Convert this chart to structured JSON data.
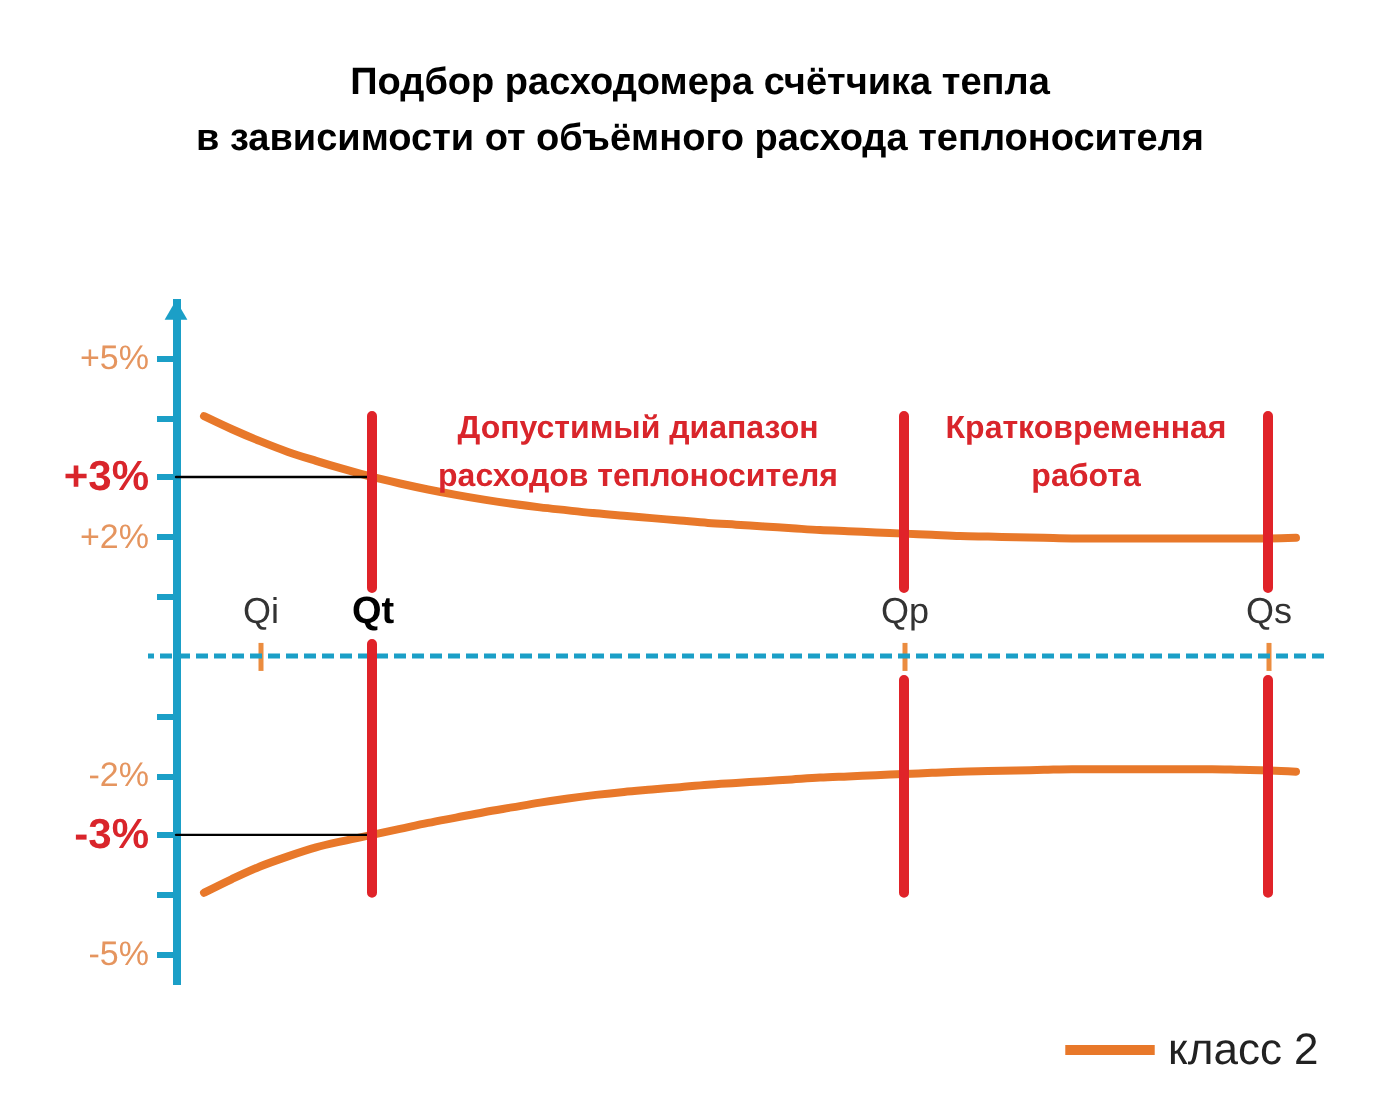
{
  "chart_data": {
    "type": "line",
    "title": "Подбор расходомера счётчика тепла\nв зависимости от объёмного расхода теплоносителя",
    "categories": [
      null,
      null,
      null,
      "Qi",
      null,
      null,
      null,
      "Qt",
      null,
      null,
      null,
      null,
      null,
      null,
      null,
      null,
      null,
      null,
      null,
      null,
      null,
      null,
      null,
      null,
      null,
      null,
      "Qp",
      null,
      null,
      null,
      null,
      null,
      null,
      null,
      null,
      null,
      null,
      null,
      null,
      "Qs",
      null
    ],
    "series": [
      {
        "name": "класс 2",
        "color": "#e8782a",
        "values": [
          null,
          4.02,
          3.8,
          3.6,
          3.42,
          3.27,
          3.13,
          3.0,
          2.89,
          2.79,
          2.7,
          2.62,
          2.55,
          2.49,
          2.44,
          2.39,
          2.35,
          2.31,
          2.27,
          2.23,
          2.2,
          2.17,
          2.14,
          2.11,
          2.09,
          2.07,
          2.05,
          2.03,
          2.01,
          2.0,
          1.99,
          1.98,
          1.97,
          1.97,
          1.97,
          1.97,
          1.97,
          1.97,
          1.97,
          1.97,
          1.98
        ]
      },
      {
        "color": "#e8782a",
        "values": [
          null,
          -3.97,
          -3.74,
          -3.53,
          -3.36,
          -3.21,
          -3.1,
          -3.0,
          -2.9,
          -2.8,
          -2.71,
          -2.62,
          -2.54,
          -2.46,
          -2.39,
          -2.33,
          -2.28,
          -2.24,
          -2.2,
          -2.16,
          -2.13,
          -2.1,
          -2.07,
          -2.04,
          -2.02,
          -2.0,
          -1.98,
          -1.96,
          -1.94,
          -1.93,
          -1.92,
          -1.91,
          -1.9,
          -1.9,
          -1.9,
          -1.9,
          -1.9,
          -1.9,
          -1.91,
          -1.92,
          -1.94
        ]
      },
      {
        "color": "#000000",
        "values": [
          3,
          3,
          3,
          3,
          3,
          3,
          3,
          3,
          null,
          null,
          null,
          null,
          null,
          null,
          null,
          null,
          null,
          null,
          null,
          null,
          null,
          null,
          null,
          null,
          null,
          null,
          null,
          null,
          null,
          null,
          null,
          null,
          null,
          null,
          null,
          null,
          null,
          null,
          null,
          null,
          null
        ]
      },
      {
        "color": "#000000",
        "values": [
          -3,
          -3,
          -3,
          -3,
          -3,
          -3,
          -3,
          -3,
          null,
          null,
          null,
          null,
          null,
          null,
          null,
          null,
          null,
          null,
          null,
          null,
          null,
          null,
          null,
          null,
          null,
          null,
          null,
          null,
          null,
          null,
          null,
          null,
          null,
          null,
          null,
          null,
          null,
          null,
          null,
          null,
          null
        ]
      }
    ],
    "ylim": [
      -5.5,
      6
    ],
    "yticks": [
      {
        "value": 5,
        "label": "+5%"
      },
      {
        "value": 4,
        "label": null
      },
      {
        "value": 3,
        "label": "+3%"
      },
      {
        "value": 2,
        "label": "+2%"
      },
      {
        "value": 1,
        "label": null
      },
      {
        "value": -1,
        "label": null
      },
      {
        "value": -2,
        "label": "-2%"
      },
      {
        "value": -3,
        "label": "-3%"
      },
      {
        "value": -4,
        "label": null
      },
      {
        "value": -5,
        "label": "-5%"
      }
    ],
    "ref_lines": [
      {
        "axis": "y",
        "value": 0,
        "color": "#1b9fc7",
        "line_style": "dashed"
      },
      {
        "axis": "x",
        "value": "Qt",
        "color": "#e02329"
      },
      {
        "axis": "x",
        "value": "Qp",
        "color": "#e02329"
      },
      {
        "axis": "x",
        "value": "Qs",
        "color": "#e02329"
      }
    ],
    "annotations": [
      "Допустимый диапазон\nрасходов теплоносителя",
      "Кратковременная\nработа"
    ],
    "legend": "bottom right"
  }
}
